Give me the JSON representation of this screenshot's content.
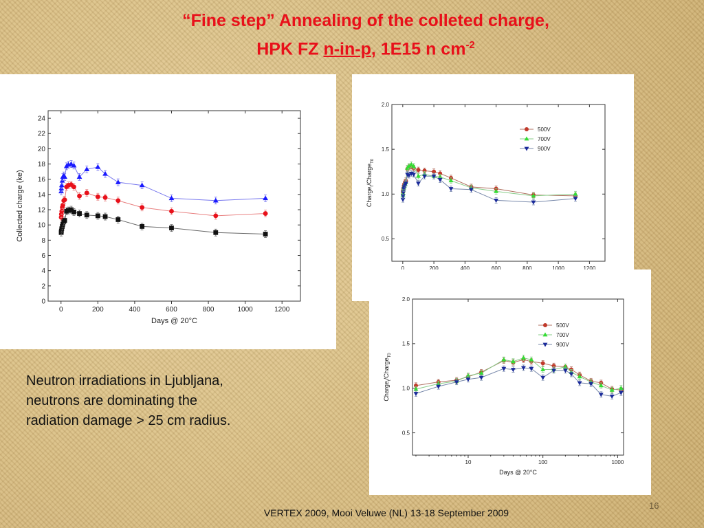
{
  "slide": {
    "title_line1": "“Fine step” Annealing of the colleted charge,",
    "title_line2_a": "HPK FZ ",
    "title_line2_u": "n-in-p",
    "title_line2_b": ", 1E15 n cm",
    "title_sup": "-2",
    "note": "Neutron irradiations in Ljubljana,\nneutrons are dominating the\nradiation damage > 25 cm radius.",
    "footer": "VERTEX 2009, Mooi Veluwe (NL) 13-18 September 2009",
    "page_number": "16"
  },
  "chart_data": [
    {
      "type": "line",
      "xlabel": "Days @ 20°C",
      "ylabel": "Collected charge (ke)",
      "xlim": [
        -70,
        1300
      ],
      "ylim": [
        0,
        25
      ],
      "xticks": [
        0,
        200,
        400,
        600,
        800,
        1000,
        1200
      ],
      "yticks": [
        0,
        2,
        4,
        6,
        8,
        10,
        12,
        14,
        16,
        18,
        20,
        22,
        24
      ],
      "x": [
        1,
        2,
        4,
        7,
        10,
        15,
        20,
        30,
        40,
        55,
        70,
        100,
        140,
        200,
        240,
        310,
        440,
        600,
        840,
        1110
      ],
      "series": [
        {
          "color": "#1a1aff",
          "marker": "triangle",
          "line": "#7777ee",
          "values": [
            14.4,
            14.8,
            15.2,
            15.8,
            16.3,
            16.5,
            16.3,
            17.7,
            17.9,
            18.0,
            17.8,
            16.3,
            17.3,
            17.6,
            16.7,
            15.6,
            15.2,
            13.5,
            13.2,
            13.5
          ]
        },
        {
          "color": "#e8101a",
          "marker": "circle",
          "line": "#e88080",
          "values": [
            11.0,
            11.4,
            11.8,
            12.3,
            12.6,
            13.2,
            13.3,
            15.0,
            15.2,
            15.3,
            15.0,
            13.8,
            14.2,
            13.7,
            13.6,
            13.2,
            12.3,
            11.8,
            11.2,
            11.5
          ]
        },
        {
          "color": "#111111",
          "marker": "square",
          "line": "#666666",
          "values": [
            9.0,
            9.2,
            9.5,
            9.8,
            10.1,
            10.4,
            10.6,
            11.8,
            11.9,
            12.0,
            11.7,
            11.5,
            11.3,
            11.2,
            11.1,
            10.7,
            9.8,
            9.6,
            9.0,
            8.8
          ]
        }
      ]
    },
    {
      "type": "line",
      "xlabel": "",
      "ylabel": "Charge/Charge",
      "ylabel_sub1": "t",
      "ylabel_sub2": "T0",
      "xlim": [
        -70,
        1300
      ],
      "ylim": [
        0.25,
        2.0
      ],
      "xticks": [
        0,
        200,
        400,
        600,
        800,
        1000,
        1200
      ],
      "yticks": [
        0.5,
        1.0,
        1.5,
        2.0
      ],
      "x": [
        1,
        2,
        4,
        7,
        10,
        15,
        20,
        30,
        40,
        55,
        70,
        100,
        140,
        200,
        240,
        310,
        440,
        600,
        840,
        1110
      ],
      "series": [
        {
          "name": "500V",
          "color": "#c0392b",
          "marker": "circle",
          "line": "#b07060",
          "values": [
            1.02,
            1.04,
            1.06,
            1.09,
            1.11,
            1.13,
            1.15,
            1.28,
            1.3,
            1.31,
            1.29,
            1.27,
            1.26,
            1.25,
            1.23,
            1.18,
            1.08,
            1.06,
            0.99,
            0.98
          ]
        },
        {
          "name": "700V",
          "color": "#33dd33",
          "marker": "triangle",
          "line": "#88cc88",
          "values": [
            0.99,
            1.01,
            1.04,
            1.07,
            1.09,
            1.11,
            1.13,
            1.29,
            1.31,
            1.33,
            1.31,
            1.2,
            1.22,
            1.2,
            1.19,
            1.15,
            1.07,
            1.03,
            0.98,
            1.0
          ]
        },
        {
          "name": "900V",
          "color": "#1a2a9a",
          "marker": "triangle-down",
          "line": "#7788aa",
          "values": [
            0.94,
            0.98,
            1.02,
            1.06,
            1.08,
            1.1,
            1.12,
            1.22,
            1.21,
            1.23,
            1.22,
            1.12,
            1.2,
            1.2,
            1.16,
            1.06,
            1.05,
            0.93,
            0.91,
            0.95
          ]
        }
      ]
    },
    {
      "type": "line",
      "xlabel": "Days @ 20°C",
      "ylabel": "Charge/Charge",
      "ylabel_sub1": "t",
      "ylabel_sub2": "T0",
      "xscale": "log",
      "xlim": [
        1.8,
        1200
      ],
      "ylim": [
        0.25,
        2.0
      ],
      "xticks": [
        10,
        100,
        1000
      ],
      "yticks": [
        0.5,
        1.0,
        1.5,
        2.0
      ],
      "x": [
        2,
        4,
        7,
        10,
        15,
        30,
        40,
        55,
        70,
        100,
        140,
        200,
        240,
        310,
        440,
        600,
        840,
        1110
      ],
      "series": [
        {
          "name": "500V",
          "color": "#c0392b",
          "marker": "circle",
          "line": "#b07060",
          "values": [
            1.03,
            1.07,
            1.09,
            1.13,
            1.18,
            1.31,
            1.29,
            1.32,
            1.3,
            1.28,
            1.25,
            1.24,
            1.21,
            1.15,
            1.08,
            1.06,
            0.99,
            0.98
          ]
        },
        {
          "name": "700V",
          "color": "#33dd33",
          "marker": "triangle",
          "line": "#88cc88",
          "values": [
            0.99,
            1.05,
            1.08,
            1.14,
            1.17,
            1.32,
            1.3,
            1.34,
            1.32,
            1.21,
            1.21,
            1.24,
            1.18,
            1.13,
            1.07,
            1.03,
            0.98,
            1.0
          ]
        },
        {
          "name": "900V",
          "color": "#1a2a9a",
          "marker": "triangle-down",
          "line": "#7788aa",
          "values": [
            0.94,
            1.02,
            1.07,
            1.1,
            1.12,
            1.22,
            1.21,
            1.23,
            1.22,
            1.12,
            1.2,
            1.2,
            1.16,
            1.06,
            1.05,
            0.93,
            0.91,
            0.95
          ]
        }
      ]
    }
  ]
}
